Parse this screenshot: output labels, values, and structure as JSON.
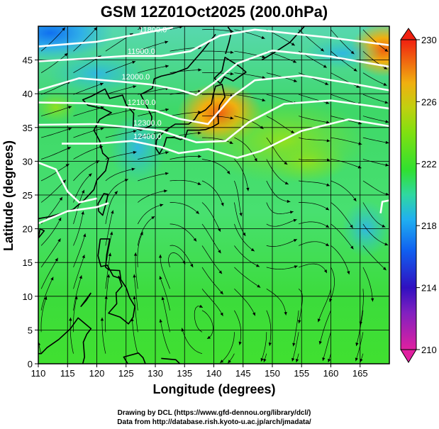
{
  "chart_data": {
    "type": "heatmap",
    "title": "GSM 12Z01Oct2025 (200.0hPa)",
    "xlabel": "Longitude (degrees)",
    "ylabel": "Latitude  (degrees)",
    "xlim": [
      110,
      170
    ],
    "ylim": [
      0,
      50
    ],
    "xticks": [
      110,
      115,
      120,
      125,
      130,
      135,
      140,
      145,
      150,
      155,
      160,
      165
    ],
    "yticks": [
      0,
      5,
      10,
      15,
      20,
      25,
      30,
      35,
      40,
      45
    ],
    "grid": true,
    "colorbar": {
      "ticks": [
        210,
        214,
        218,
        222,
        226,
        230
      ],
      "range": [
        210,
        230
      ],
      "colors": [
        "#e020a0",
        "#3010c0",
        "#1060f0",
        "#20b0f0",
        "#30d080",
        "#30e020",
        "#a0e010",
        "#f0b010",
        "#f03010"
      ]
    },
    "contours": [
      {
        "label": "11800.0",
        "points": [
          [
            110,
            47.0
          ],
          [
            120,
            47.7
          ],
          [
            127,
            48.8
          ],
          [
            133,
            49.8
          ]
        ]
      },
      {
        "label": "11900.0",
        "points": [
          [
            110,
            44.8
          ],
          [
            118,
            45.2
          ],
          [
            125,
            45.6
          ],
          [
            131,
            45.6
          ],
          [
            136,
            46.3
          ],
          [
            141,
            48.6
          ],
          [
            147,
            49.5
          ],
          [
            160,
            48.3
          ],
          [
            170,
            47.2
          ]
        ]
      },
      {
        "label": "12000.0",
        "points": [
          [
            110,
            40.5
          ],
          [
            117,
            42.3
          ],
          [
            124,
            41.8
          ],
          [
            129,
            41.4
          ],
          [
            134,
            40.6
          ],
          [
            137,
            39.8
          ],
          [
            140,
            41.6
          ],
          [
            144,
            44.5
          ],
          [
            150,
            46.4
          ],
          [
            160,
            45.5
          ],
          [
            170,
            44.0
          ]
        ]
      },
      {
        "label": "12100.0",
        "points": [
          [
            110,
            38.7
          ],
          [
            118,
            38.6
          ],
          [
            125,
            38.0
          ],
          [
            130,
            37.5
          ],
          [
            134,
            36.3
          ],
          [
            139,
            35.5
          ],
          [
            143,
            39.5
          ],
          [
            147,
            42.0
          ],
          [
            155,
            42.7
          ],
          [
            163,
            41.6
          ],
          [
            170,
            40.5
          ]
        ]
      },
      {
        "label": "12300.0",
        "points": [
          [
            110,
            35.4
          ],
          [
            120,
            35.5
          ],
          [
            126,
            35.0
          ],
          [
            131,
            34.5
          ],
          [
            137,
            32.8
          ],
          [
            142,
            33.0
          ],
          [
            146,
            35.8
          ],
          [
            152,
            38.5
          ],
          [
            160,
            39.0
          ],
          [
            170,
            37.8
          ]
        ]
      },
      {
        "label": "12400.0",
        "points": [
          [
            114,
            32.6
          ],
          [
            120,
            32.6
          ],
          [
            126,
            33.0
          ],
          [
            131,
            32.1
          ],
          [
            134,
            31.2
          ],
          [
            139,
            31.8
          ],
          [
            144,
            30.5
          ],
          [
            148,
            31.5
          ],
          [
            155,
            34.5
          ],
          [
            163,
            36.2
          ],
          [
            170,
            35.2
          ]
        ]
      },
      {
        "label": "",
        "points": [
          [
            110,
            29.8
          ],
          [
            113,
            28.8
          ],
          [
            115,
            25.5
          ],
          [
            117,
            23.9
          ],
          [
            120,
            24.5
          ]
        ]
      },
      {
        "label": "",
        "points": [
          [
            110,
            20.8
          ],
          [
            115,
            22.6
          ],
          [
            120,
            23.2
          ],
          [
            122,
            23.8
          ]
        ]
      },
      {
        "label": "",
        "points": [
          [
            168.5,
            22.3
          ],
          [
            168.8,
            24.0
          ],
          [
            170,
            24.2
          ]
        ]
      }
    ],
    "hotspots": [
      {
        "x": 141,
        "y": 37,
        "value": 229
      },
      {
        "x": 169,
        "y": 46.5,
        "value": 228
      },
      {
        "x": 112,
        "y": 49,
        "value": 217
      },
      {
        "x": 166,
        "y": 20,
        "value": 218
      },
      {
        "x": 152,
        "y": 33,
        "value": 223
      }
    ],
    "annotations": [
      "Drawing by DCL (https://www.gfd-dennou.org/library/dcl/)",
      "Data from http://database.rish.kyoto-u.ac.jp/arch/jmadata/"
    ]
  }
}
